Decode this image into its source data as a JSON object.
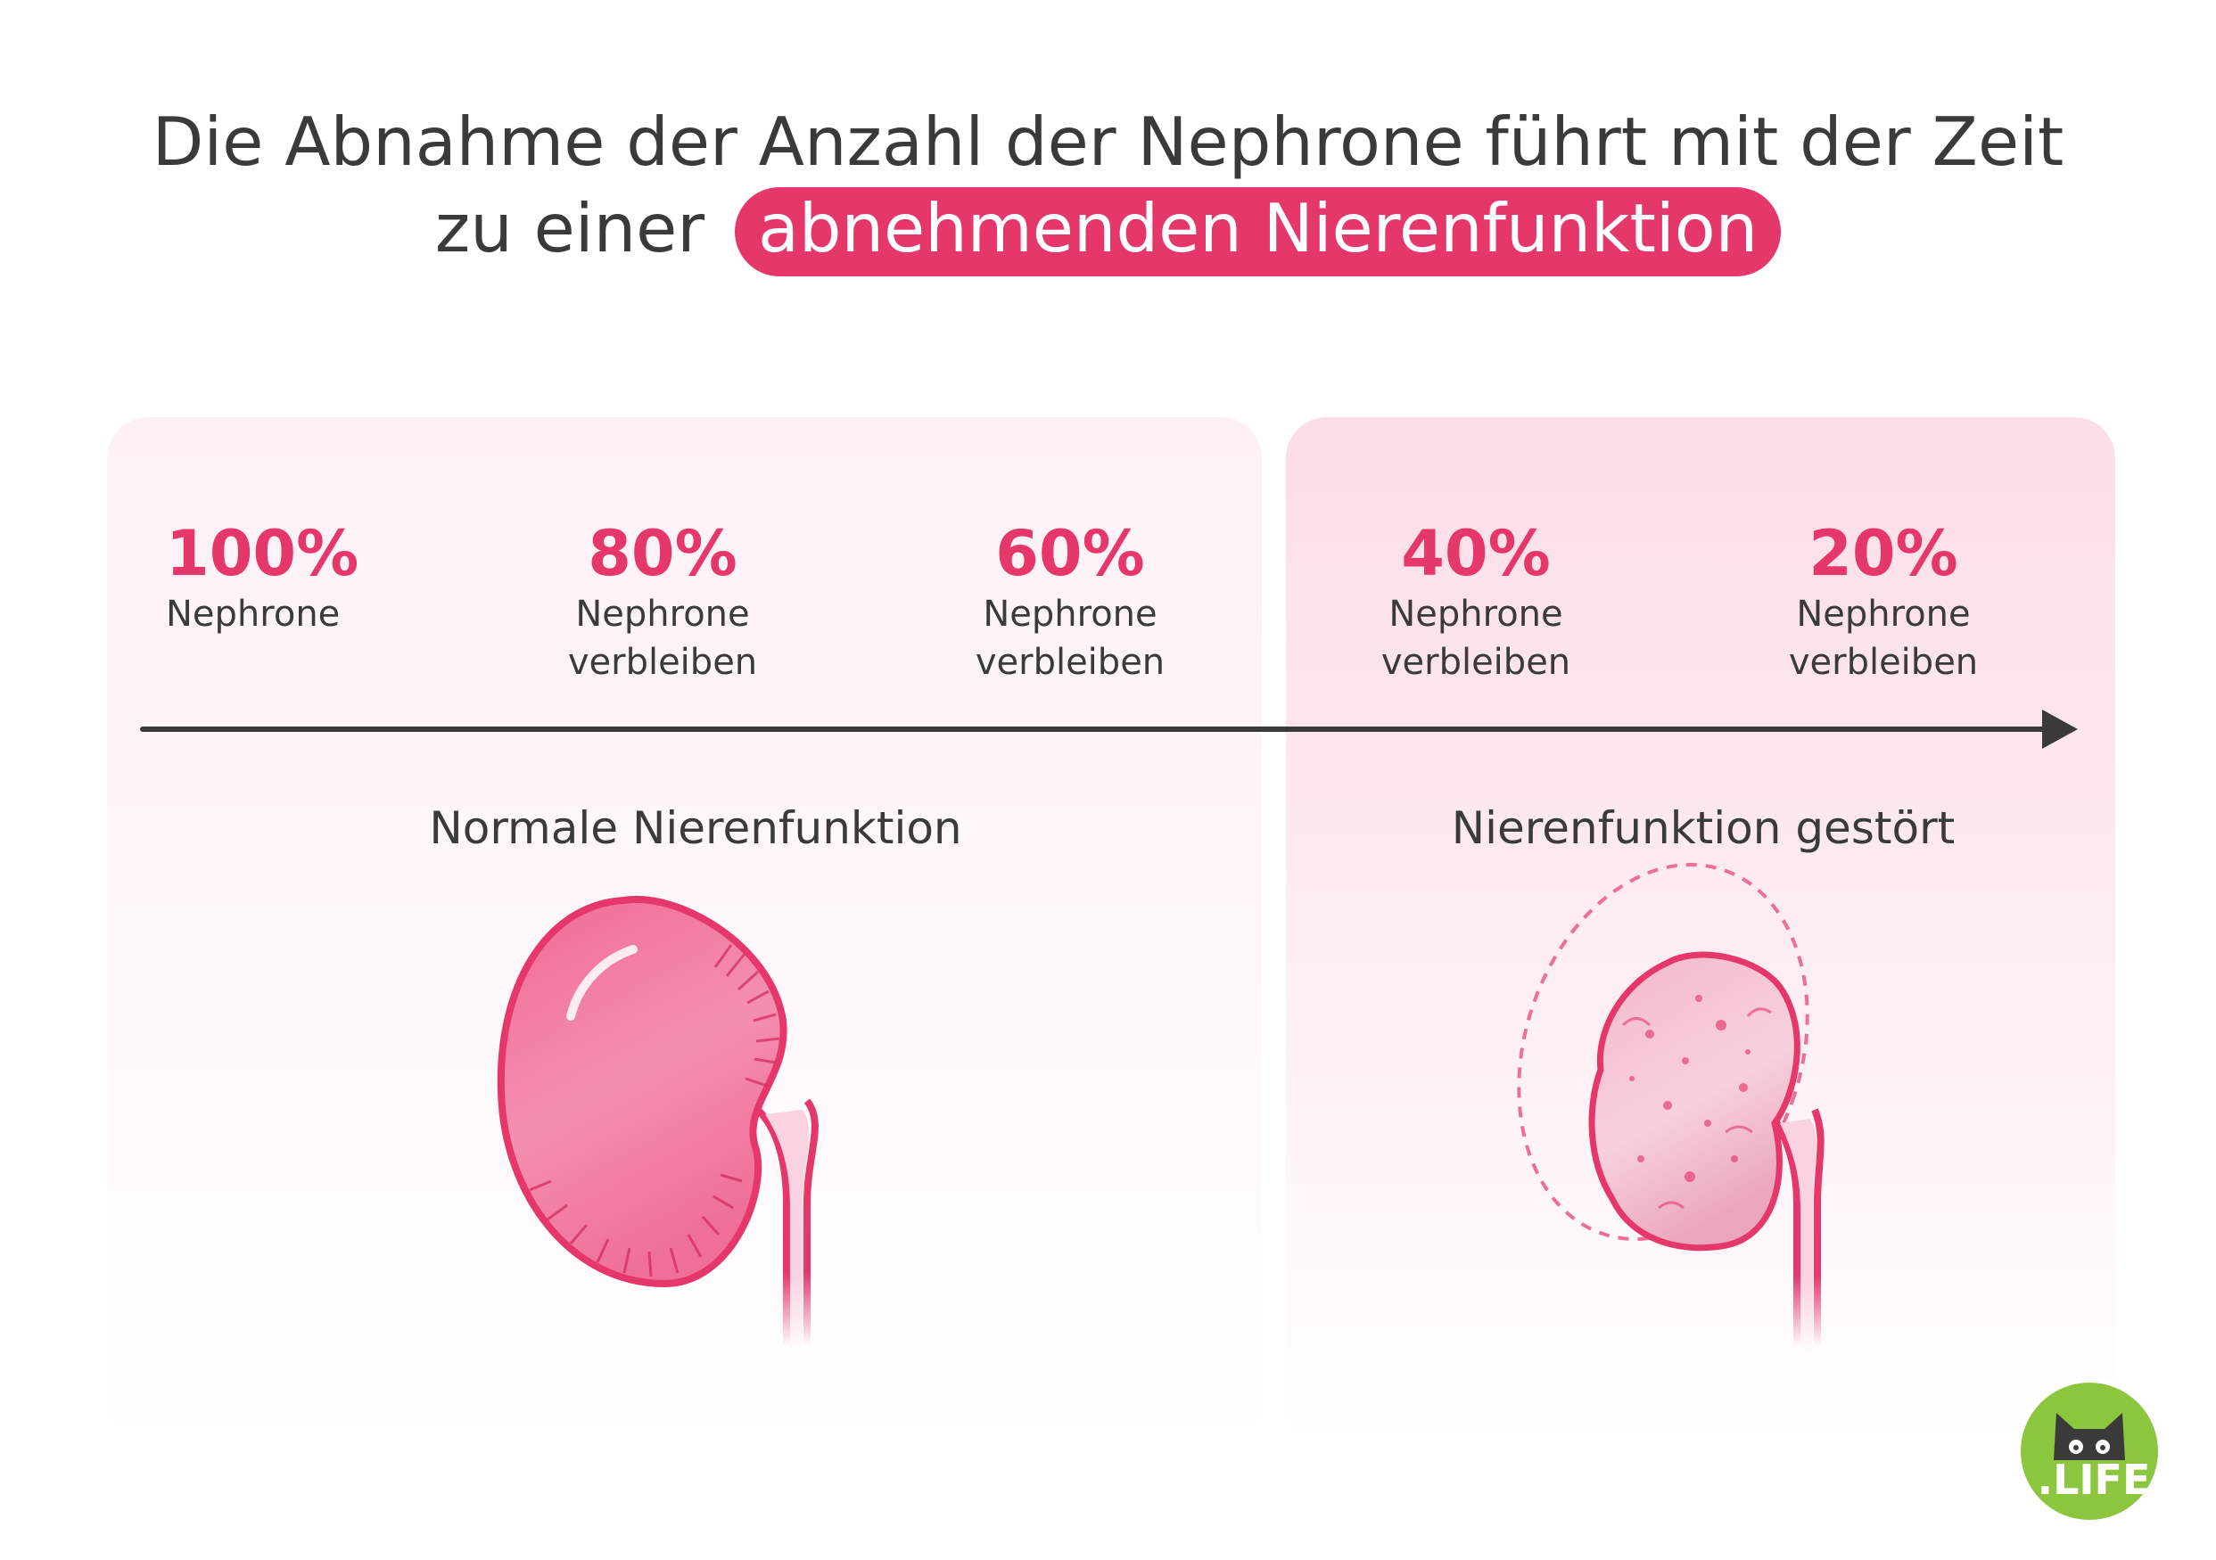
{
  "title": {
    "line1": "Die Abnahme der Anzahl der Nephrone führt mit der Zeit",
    "line2_prefix": "zu einer",
    "highlight": "abnehmenden Nierenfunktion"
  },
  "stages": [
    {
      "percent": "100%",
      "label": "Nephrone"
    },
    {
      "percent": "80%",
      "label": "Nephrone\nverbleiben"
    },
    {
      "percent": "60%",
      "label": "Nephrone\nverbleiben"
    },
    {
      "percent": "40%",
      "label": "Nephrone\nverbleiben"
    },
    {
      "percent": "20%",
      "label": "Nephrone\nverbleiben"
    }
  ],
  "zones": {
    "normal": "Normale Nierenfunktion",
    "impaired": "Nierenfunktion gestört"
  },
  "logo": {
    "text": ".LIFE"
  },
  "colors": {
    "accent": "#e6376a",
    "text": "#3a3a3a",
    "panel_left": "#fdf1f4",
    "panel_right": "#fbdde6",
    "logo_green": "#8cc63f"
  }
}
